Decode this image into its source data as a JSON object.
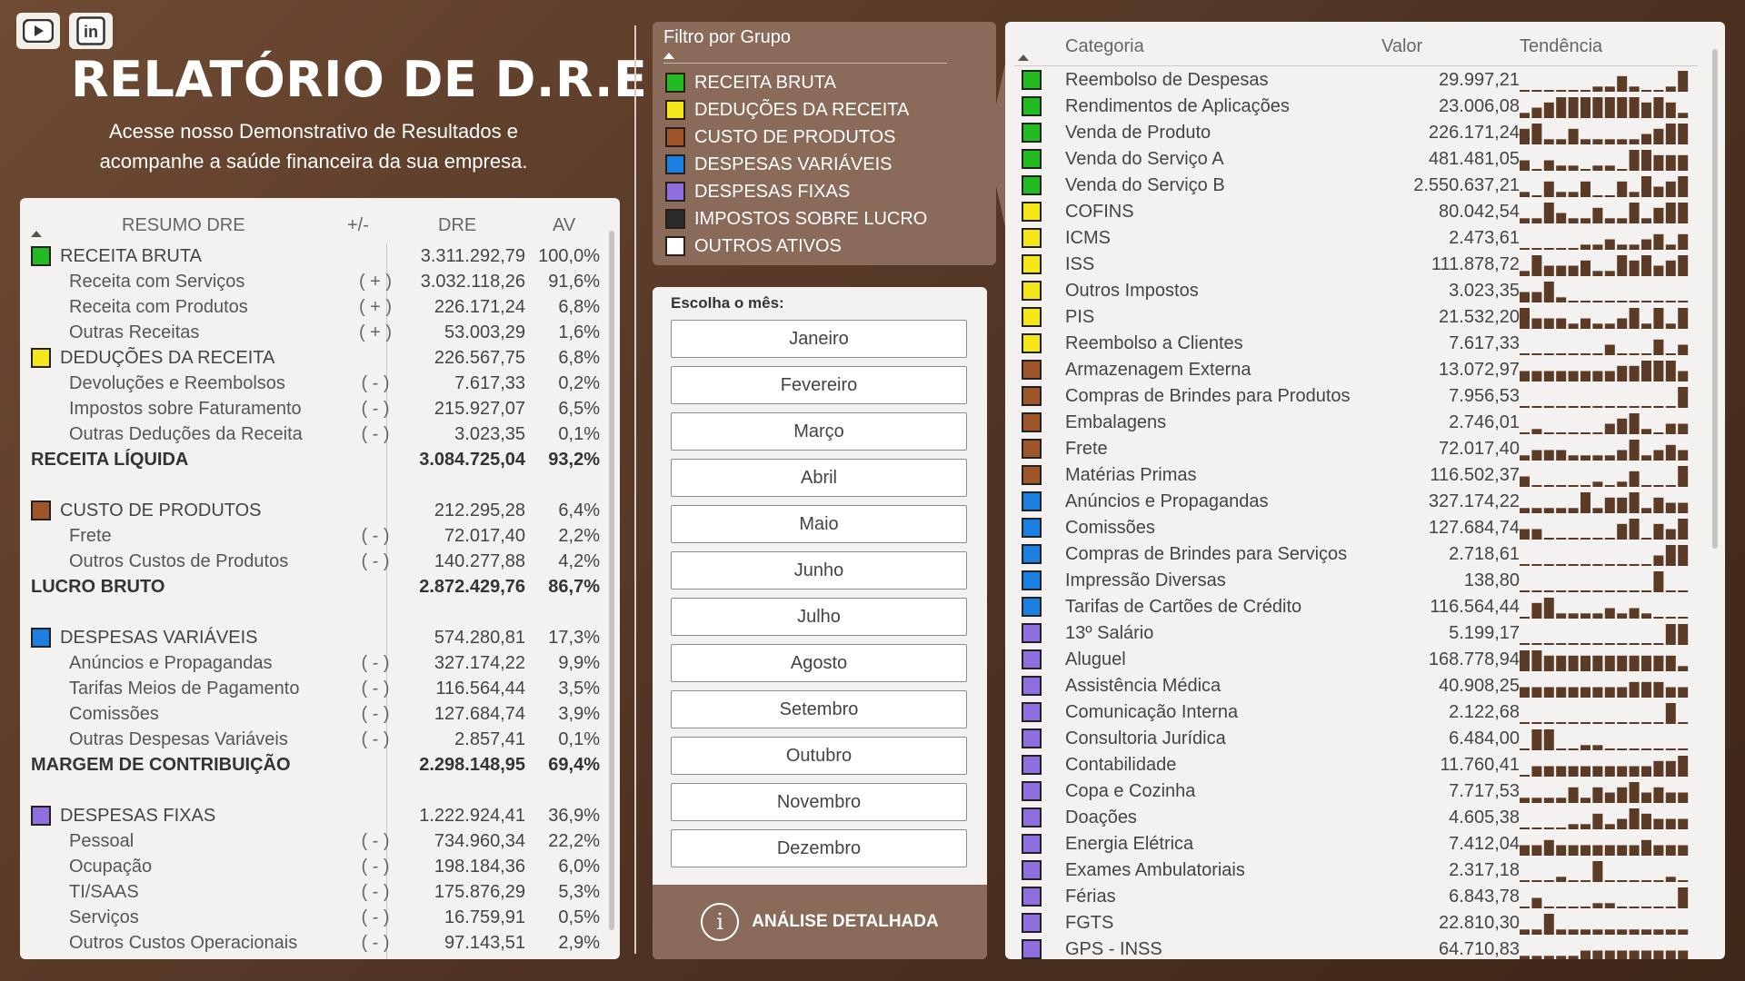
{
  "header": {
    "title": "RELATÓRIO DE D.R.E",
    "subtitle_line1": "Acesse nosso Demonstrativo de Resultados e",
    "subtitle_line2": "acompanhe a saúde financeira da sua empresa.",
    "social_icons": [
      "youtube-icon",
      "linkedin-icon"
    ],
    "linkedin_text": "in"
  },
  "colors": {
    "receita_bruta": "#22bb22",
    "deducoes": "#f5e61a",
    "custo": "#a0562b",
    "despesas_variaveis": "#1a7fe0",
    "despesas_fixas": "#8f6ee0",
    "impostos": "#2b2b2b",
    "outros": "#ffffff",
    "background": "#5a3b28",
    "bar": "#5b3a26"
  },
  "dre": {
    "headers": {
      "resumo": "RESUMO DRE",
      "sign": "+/-",
      "dre": "DRE",
      "av": "AV"
    },
    "rows": [
      {
        "type": "group",
        "color": "#22bb22",
        "label": "RECEITA BRUTA",
        "sign": "",
        "value": "3.311.292,79",
        "av": "100,0%"
      },
      {
        "type": "sub",
        "label": "Receita com Serviços",
        "sign": "( + )",
        "value": "3.032.118,26",
        "av": "91,6%"
      },
      {
        "type": "sub",
        "label": "Receita com Produtos",
        "sign": "( + )",
        "value": "226.171,24",
        "av": "6,8%"
      },
      {
        "type": "sub",
        "label": "Outras Receitas",
        "sign": "( + )",
        "value": "53.003,29",
        "av": "1,6%"
      },
      {
        "type": "group",
        "color": "#f5e61a",
        "label": "DEDUÇÕES DA RECEITA",
        "sign": "",
        "value": "226.567,75",
        "av": "6,8%"
      },
      {
        "type": "sub",
        "label": "Devoluções e Reembolsos",
        "sign": "( - )",
        "value": "7.617,33",
        "av": "0,2%"
      },
      {
        "type": "sub",
        "label": "Impostos sobre Faturamento",
        "sign": "( - )",
        "value": "215.927,07",
        "av": "6,5%"
      },
      {
        "type": "sub",
        "label": "Outras Deduções da Receita",
        "sign": "( - )",
        "value": "3.023,35",
        "av": "0,1%"
      },
      {
        "type": "total",
        "label": "RECEITA LÍQUIDA",
        "sign": "",
        "value": "3.084.725,04",
        "av": "93,2%"
      },
      {
        "type": "gap"
      },
      {
        "type": "group",
        "color": "#a0562b",
        "label": "CUSTO DE PRODUTOS",
        "sign": "",
        "value": "212.295,28",
        "av": "6,4%"
      },
      {
        "type": "sub",
        "label": "Frete",
        "sign": "( - )",
        "value": "72.017,40",
        "av": "2,2%"
      },
      {
        "type": "sub",
        "label": "Outros Custos de Produtos",
        "sign": "( - )",
        "value": "140.277,88",
        "av": "4,2%"
      },
      {
        "type": "total",
        "label": "LUCRO BRUTO",
        "sign": "",
        "value": "2.872.429,76",
        "av": "86,7%"
      },
      {
        "type": "gap"
      },
      {
        "type": "group",
        "color": "#1a7fe0",
        "label": "DESPESAS VARIÁVEIS",
        "sign": "",
        "value": "574.280,81",
        "av": "17,3%"
      },
      {
        "type": "sub",
        "label": "Anúncios e Propagandas",
        "sign": "( - )",
        "value": "327.174,22",
        "av": "9,9%"
      },
      {
        "type": "sub",
        "label": "Tarifas Meios de Pagamento",
        "sign": "( - )",
        "value": "116.564,44",
        "av": "3,5%"
      },
      {
        "type": "sub",
        "label": "Comissões",
        "sign": "( - )",
        "value": "127.684,74",
        "av": "3,9%"
      },
      {
        "type": "sub",
        "label": "Outras Despesas Variáveis",
        "sign": "( - )",
        "value": "2.857,41",
        "av": "0,1%"
      },
      {
        "type": "total",
        "label": "MARGEM DE CONTRIBUIÇÃO",
        "sign": "",
        "value": "2.298.148,95",
        "av": "69,4%"
      },
      {
        "type": "gap"
      },
      {
        "type": "group",
        "color": "#8f6ee0",
        "label": "DESPESAS FIXAS",
        "sign": "",
        "value": "1.222.924,41",
        "av": "36,9%"
      },
      {
        "type": "sub",
        "label": "Pessoal",
        "sign": "( - )",
        "value": "734.960,34",
        "av": "22,2%"
      },
      {
        "type": "sub",
        "label": "Ocupação",
        "sign": "( - )",
        "value": "198.184,36",
        "av": "6,0%"
      },
      {
        "type": "sub",
        "label": "TI/SAAS",
        "sign": "( - )",
        "value": "175.876,29",
        "av": "5,3%"
      },
      {
        "type": "sub",
        "label": "Serviços",
        "sign": "( - )",
        "value": "16.759,91",
        "av": "0,5%"
      },
      {
        "type": "sub",
        "label": "Outros Custos Operacionais",
        "sign": "( - )",
        "value": "97.143,51",
        "av": "2,9%"
      }
    ]
  },
  "filter": {
    "title": "Filtro por Grupo",
    "items": [
      {
        "label": "RECEITA BRUTA",
        "color": "#22bb22"
      },
      {
        "label": "DEDUÇÕES DA RECEITA",
        "color": "#f5e61a"
      },
      {
        "label": "CUSTO DE PRODUTOS",
        "color": "#a0562b"
      },
      {
        "label": "DESPESAS VARIÁVEIS",
        "color": "#1a7fe0"
      },
      {
        "label": "DESPESAS FIXAS",
        "color": "#8f6ee0"
      },
      {
        "label": "IMPOSTOS SOBRE LUCRO",
        "color": "#2b2b2b"
      },
      {
        "label": "OUTROS ATIVOS",
        "color": "#ffffff"
      }
    ]
  },
  "months": {
    "title": "Escolha o mês:",
    "items": [
      "Janeiro",
      "Fevereiro",
      "Março",
      "Abril",
      "Maio",
      "Junho",
      "Julho",
      "Agosto",
      "Setembro",
      "Outubro",
      "Novembro",
      "Dezembro"
    ]
  },
  "analysis": {
    "icon": "info-icon",
    "icon_glyph": "i",
    "label": "ANÁLISE DETALHADA"
  },
  "categories": {
    "headers": {
      "categoria": "Categoria",
      "valor": "Valor",
      "tendencia": "Tendência"
    },
    "rows": [
      {
        "color": "#22bb22",
        "name": "Reembolso de Despesas",
        "value": "29.997,21",
        "trend": [
          0,
          0,
          0,
          0,
          0,
          0,
          1,
          1,
          3,
          1,
          0,
          0,
          1,
          4
        ]
      },
      {
        "color": "#22bb22",
        "name": "Rendimentos de Aplicações",
        "value": "23.006,08",
        "trend": [
          1,
          2,
          3,
          4,
          4,
          4,
          4,
          4,
          4,
          4,
          3,
          4,
          3,
          1
        ]
      },
      {
        "color": "#22bb22",
        "name": "Venda de Produto",
        "value": "226.171,24",
        "trend": [
          3,
          4,
          1,
          1,
          3,
          1,
          1,
          1,
          1,
          1,
          2,
          3,
          4,
          4
        ]
      },
      {
        "color": "#22bb22",
        "name": "Venda do Serviço A",
        "value": "481.481,05",
        "trend": [
          2,
          0,
          2,
          1,
          1,
          0,
          1,
          1,
          0,
          4,
          4,
          3,
          3,
          3
        ]
      },
      {
        "color": "#22bb22",
        "name": "Venda do Serviço B",
        "value": "2.550.637,21",
        "trend": [
          1,
          0,
          3,
          1,
          1,
          3,
          0,
          0,
          3,
          1,
          4,
          2,
          3,
          4
        ]
      },
      {
        "color": "#f5e61a",
        "name": "COFINS",
        "value": "80.042,54",
        "trend": [
          1,
          1,
          4,
          2,
          1,
          1,
          3,
          1,
          1,
          4,
          1,
          3,
          4,
          4
        ]
      },
      {
        "color": "#f5e61a",
        "name": "ICMS",
        "value": "2.473,61",
        "trend": [
          0,
          0,
          0,
          0,
          0,
          1,
          1,
          2,
          1,
          1,
          2,
          3,
          1,
          3
        ]
      },
      {
        "color": "#f5e61a",
        "name": "ISS",
        "value": "111.878,72",
        "trend": [
          1,
          4,
          2,
          2,
          2,
          3,
          1,
          1,
          4,
          3,
          4,
          2,
          3,
          4
        ]
      },
      {
        "color": "#f5e61a",
        "name": "Outros Impostos",
        "value": "3.023,35",
        "trend": [
          2,
          2,
          4,
          1,
          0,
          0,
          0,
          0,
          0,
          0,
          0,
          0,
          0,
          0
        ]
      },
      {
        "color": "#f5e61a",
        "name": "PIS",
        "value": "21.532,20",
        "trend": [
          4,
          2,
          2,
          2,
          1,
          2,
          1,
          1,
          2,
          4,
          1,
          4,
          1,
          4
        ]
      },
      {
        "color": "#f5e61a",
        "name": "Reembolso a Clientes",
        "value": "7.617,33",
        "trend": [
          0,
          0,
          0,
          0,
          0,
          0,
          0,
          2,
          0,
          0,
          0,
          3,
          0,
          2
        ]
      },
      {
        "color": "#a0562b",
        "name": "Armazenagem Externa",
        "value": "13.072,97",
        "trend": [
          2,
          2,
          2,
          2,
          2,
          2,
          2,
          2,
          3,
          3,
          4,
          4,
          4,
          2
        ]
      },
      {
        "color": "#a0562b",
        "name": "Compras de Brindes para Produtos",
        "value": "7.956,53",
        "trend": [
          0,
          0,
          0,
          0,
          0,
          0,
          0,
          0,
          0,
          0,
          0,
          0,
          0,
          4
        ]
      },
      {
        "color": "#a0562b",
        "name": "Embalagens",
        "value": "2.746,01",
        "trend": [
          0,
          1,
          0,
          0,
          0,
          0,
          0,
          2,
          3,
          4,
          1,
          0,
          2,
          2
        ]
      },
      {
        "color": "#a0562b",
        "name": "Frete",
        "value": "72.017,40",
        "trend": [
          1,
          2,
          2,
          2,
          1,
          1,
          1,
          1,
          2,
          4,
          1,
          2,
          3,
          2
        ]
      },
      {
        "color": "#a0562b",
        "name": "Matérias Primas",
        "value": "116.502,37",
        "trend": [
          2,
          0,
          0,
          0,
          0,
          0,
          1,
          0,
          1,
          3,
          0,
          0,
          0,
          4
        ]
      },
      {
        "color": "#1a7fe0",
        "name": "Anúncios e Propagandas",
        "value": "327.174,22",
        "trend": [
          1,
          1,
          1,
          1,
          1,
          4,
          1,
          3,
          3,
          4,
          1,
          3,
          2,
          2
        ]
      },
      {
        "color": "#1a7fe0",
        "name": "Comissões",
        "value": "127.684,74",
        "trend": [
          2,
          2,
          0,
          0,
          0,
          0,
          0,
          0,
          3,
          4,
          0,
          3,
          2,
          4
        ]
      },
      {
        "color": "#1a7fe0",
        "name": "Compras de Brindes para Serviços",
        "value": "2.718,61",
        "trend": [
          0,
          0,
          0,
          0,
          0,
          0,
          0,
          0,
          0,
          0,
          0,
          2,
          4,
          4
        ]
      },
      {
        "color": "#1a7fe0",
        "name": "Impressão Diversas",
        "value": "138,80",
        "trend": [
          0,
          0,
          0,
          0,
          0,
          0,
          0,
          0,
          0,
          0,
          0,
          4,
          0,
          0
        ]
      },
      {
        "color": "#1a7fe0",
        "name": "Tarifas de Cartões de Crédito",
        "value": "116.564,44",
        "trend": [
          0,
          3,
          4,
          1,
          1,
          1,
          1,
          2,
          1,
          2,
          1,
          0,
          0,
          0
        ]
      },
      {
        "color": "#8f6ee0",
        "name": "13º Salário",
        "value": "5.199,17",
        "trend": [
          0,
          0,
          0,
          0,
          0,
          0,
          0,
          0,
          0,
          0,
          0,
          0,
          4,
          4
        ]
      },
      {
        "color": "#8f6ee0",
        "name": "Aluguel",
        "value": "168.778,94",
        "trend": [
          4,
          4,
          3,
          3,
          3,
          3,
          3,
          3,
          3,
          3,
          3,
          3,
          3,
          1
        ]
      },
      {
        "color": "#8f6ee0",
        "name": "Assistência Médica",
        "value": "40.908,25",
        "trend": [
          2,
          2,
          2,
          2,
          2,
          2,
          2,
          2,
          2,
          3,
          3,
          3,
          2,
          2
        ]
      },
      {
        "color": "#8f6ee0",
        "name": "Comunicação Interna",
        "value": "2.122,68",
        "trend": [
          0,
          0,
          0,
          0,
          0,
          0,
          0,
          0,
          0,
          0,
          0,
          0,
          4,
          0
        ]
      },
      {
        "color": "#8f6ee0",
        "name": "Consultoria Jurídica",
        "value": "6.484,00",
        "trend": [
          0,
          4,
          4,
          0,
          0,
          1,
          1,
          0,
          0,
          0,
          0,
          0,
          0,
          0
        ]
      },
      {
        "color": "#8f6ee0",
        "name": "Contabilidade",
        "value": "11.760,41",
        "trend": [
          0,
          2,
          2,
          2,
          2,
          2,
          2,
          2,
          2,
          2,
          2,
          3,
          3,
          4
        ]
      },
      {
        "color": "#8f6ee0",
        "name": "Copa e Cozinha",
        "value": "7.717,53",
        "trend": [
          1,
          1,
          1,
          1,
          3,
          1,
          3,
          2,
          3,
          4,
          2,
          3,
          2,
          2
        ]
      },
      {
        "color": "#8f6ee0",
        "name": "Doações",
        "value": "4.605,38",
        "trend": [
          0,
          0,
          0,
          0,
          1,
          1,
          3,
          1,
          2,
          4,
          3,
          2,
          2,
          2
        ]
      },
      {
        "color": "#8f6ee0",
        "name": "Energia Elétrica",
        "value": "7.412,04",
        "trend": [
          2,
          2,
          3,
          2,
          2,
          2,
          2,
          2,
          2,
          2,
          3,
          2,
          2,
          2
        ]
      },
      {
        "color": "#8f6ee0",
        "name": "Exames Ambulatoriais",
        "value": "2.317,18",
        "trend": [
          0,
          0,
          0,
          1,
          0,
          0,
          4,
          0,
          0,
          0,
          0,
          0,
          1,
          0
        ]
      },
      {
        "color": "#8f6ee0",
        "name": "Férias",
        "value": "6.843,78",
        "trend": [
          0,
          2,
          0,
          0,
          0,
          0,
          1,
          1,
          0,
          0,
          0,
          0,
          0,
          4
        ]
      },
      {
        "color": "#8f6ee0",
        "name": "FGTS",
        "value": "22.810,30",
        "trend": [
          1,
          1,
          4,
          1,
          1,
          1,
          1,
          1,
          1,
          1,
          1,
          1,
          1,
          1
        ]
      },
      {
        "color": "#8f6ee0",
        "name": "GPS - INSS",
        "value": "64.710,83",
        "trend": [
          1,
          1,
          1,
          1,
          1,
          2,
          2,
          2,
          2,
          2,
          2,
          2,
          2,
          2
        ]
      }
    ]
  }
}
